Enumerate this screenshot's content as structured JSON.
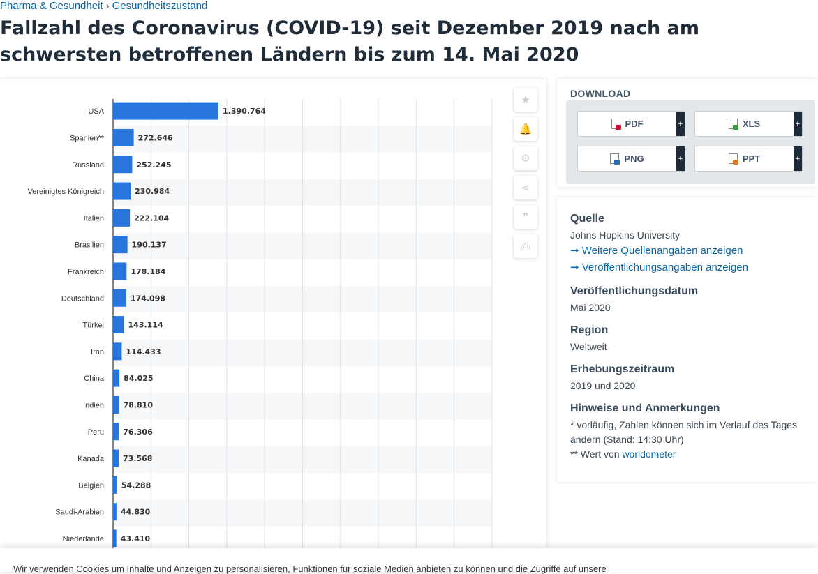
{
  "breadcrumb": {
    "item1": "Pharma & Gesundheit",
    "separator": "›",
    "item2": "Gesundheitszustand"
  },
  "page": {
    "title": "Fallzahl des Coronavirus (COVID-19) seit Dezember 2019 nach am schwersten betroffenen Ländern bis zum 14. Mai 2020"
  },
  "chart_data": {
    "type": "bar",
    "orientation": "horizontal",
    "title": "",
    "xlabel": "",
    "ylabel": "",
    "categories": [
      "USA",
      "Spanien**",
      "Russland",
      "Vereinigtes Königreich",
      "Italien",
      "Brasilien",
      "Frankreich",
      "Deutschland",
      "Türkei",
      "Iran",
      "China",
      "Indien",
      "Peru",
      "Kanada",
      "Belgien",
      "Saudi-Arabien",
      "Niederlande"
    ],
    "values": [
      1390764,
      272646,
      252245,
      230984,
      222104,
      190137,
      178184,
      174098,
      143114,
      114433,
      84025,
      78810,
      76306,
      73568,
      54288,
      44830,
      43410
    ],
    "value_labels": [
      "1.390.764",
      "272.646",
      "252.245",
      "230.984",
      "222.104",
      "190.137",
      "178.184",
      "174.098",
      "143.114",
      "114.433",
      "84.025",
      "78.810",
      "76.306",
      "73.568",
      "54.288",
      "44.830",
      "43.410"
    ],
    "xlim": [
      0,
      5000000
    ],
    "grid": true,
    "bar_color": "#2876dd"
  },
  "tools": [
    {
      "name": "star-icon",
      "glyph": "★"
    },
    {
      "name": "bell-icon",
      "glyph": "🔔"
    },
    {
      "name": "gear-icon",
      "glyph": "⚙"
    },
    {
      "name": "share-icon",
      "glyph": "⋖"
    },
    {
      "name": "quote-icon",
      "glyph": "❞"
    },
    {
      "name": "print-icon",
      "glyph": "⎙"
    }
  ],
  "download": {
    "title": "DOWNLOAD",
    "buttons": [
      {
        "label": "PDF",
        "icon": "pdf-icon",
        "color": "#c8102e",
        "plus": "+"
      },
      {
        "label": "XLS",
        "icon": "xls-icon",
        "color": "#3b9b3b",
        "plus": "+"
      },
      {
        "label": "PNG",
        "icon": "png-icon",
        "color": "#2c6fb5",
        "plus": "+"
      },
      {
        "label": "PPT",
        "icon": "ppt-icon",
        "color": "#e07a1f",
        "plus": "+"
      }
    ]
  },
  "info": {
    "source_title": "Quelle",
    "source_value": "Johns Hopkins University",
    "link_more_sources": "➞ Weitere Quellenangaben anzeigen",
    "link_publication": "➞ Veröffentlichungsangaben anzeigen",
    "pubdate_title": "Veröffentlichungsdatum",
    "pubdate_value": "Mai 2020",
    "region_title": "Region",
    "region_value": "Weltweit",
    "period_title": "Erhebungszeitraum",
    "period_value": "2019 und 2020",
    "notes_title": "Hinweise und Anmerkungen",
    "note1": "* vorläufig, Zahlen können sich im Verlauf des Tages ändern (Stand: 14:30 Uhr)",
    "note2_prefix": "** Wert von ",
    "note2_link": "worldometer"
  },
  "cookie": {
    "text": "Wir verwenden Cookies um Inhalte und Anzeigen zu personalisieren, Funktionen für soziale Medien anbieten zu können und die Zugriffe auf unsere"
  }
}
